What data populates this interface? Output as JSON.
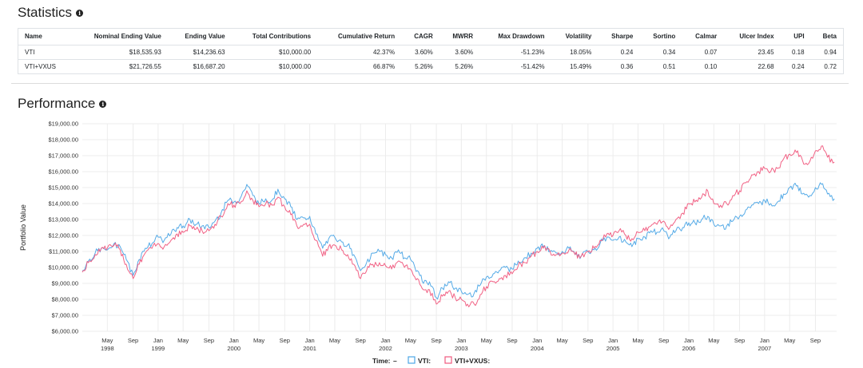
{
  "statistics": {
    "title": "Statistics",
    "info_icon": "info-circle-icon",
    "columns": [
      "Name",
      "Nominal Ending Value",
      "Ending Value",
      "Total Contributions",
      "Cumulative Return",
      "CAGR",
      "MWRR",
      "Max Drawdown",
      "Volatility",
      "Sharpe",
      "Sortino",
      "Calmar",
      "Ulcer Index",
      "UPI",
      "Beta"
    ],
    "rows": [
      [
        "VTI",
        "$18,535.93",
        "$14,236.63",
        "$10,000.00",
        "42.37%",
        "3.60%",
        "3.60%",
        "-51.23%",
        "18.05%",
        "0.24",
        "0.34",
        "0.07",
        "23.45",
        "0.18",
        "0.94"
      ],
      [
        "VTI+VXUS",
        "$21,726.55",
        "$16,687.20",
        "$10,000.00",
        "66.87%",
        "5.26%",
        "5.26%",
        "-51.42%",
        "15.49%",
        "0.36",
        "0.51",
        "0.10",
        "22.68",
        "0.24",
        "0.72"
      ]
    ]
  },
  "performance": {
    "title": "Performance",
    "info_icon": "info-circle-icon"
  },
  "chart_data": {
    "type": "line",
    "ylabel": "Portfolio Value",
    "ylim": [
      6000,
      19000
    ],
    "y_ticks": [
      "$6,000.00",
      "$7,000.00",
      "$8,000.00",
      "$9,000.00",
      "$10,000.00",
      "$11,000.00",
      "$12,000.00",
      "$13,000.00",
      "$14,000.00",
      "$15,000.00",
      "$16,000.00",
      "$17,000.00",
      "$18,000.00",
      "$19,000.00"
    ],
    "x_ticks": [
      {
        "label": "May",
        "year": "1998",
        "t": 1998.33
      },
      {
        "label": "Sep",
        "year": "",
        "t": 1998.67
      },
      {
        "label": "Jan",
        "year": "1999",
        "t": 1999.0
      },
      {
        "label": "May",
        "year": "",
        "t": 1999.33
      },
      {
        "label": "Sep",
        "year": "",
        "t": 1999.67
      },
      {
        "label": "Jan",
        "year": "2000",
        "t": 2000.0
      },
      {
        "label": "May",
        "year": "",
        "t": 2000.33
      },
      {
        "label": "Sep",
        "year": "",
        "t": 2000.67
      },
      {
        "label": "Jan",
        "year": "2001",
        "t": 2001.0
      },
      {
        "label": "May",
        "year": "",
        "t": 2001.33
      },
      {
        "label": "Sep",
        "year": "",
        "t": 2001.67
      },
      {
        "label": "Jan",
        "year": "2002",
        "t": 2002.0
      },
      {
        "label": "May",
        "year": "",
        "t": 2002.33
      },
      {
        "label": "Sep",
        "year": "",
        "t": 2002.67
      },
      {
        "label": "Jan",
        "year": "2003",
        "t": 2003.0
      },
      {
        "label": "May",
        "year": "",
        "t": 2003.33
      },
      {
        "label": "Sep",
        "year": "",
        "t": 2003.67
      },
      {
        "label": "Jan",
        "year": "2004",
        "t": 2004.0
      },
      {
        "label": "May",
        "year": "",
        "t": 2004.33
      },
      {
        "label": "Sep",
        "year": "",
        "t": 2004.67
      },
      {
        "label": "Jan",
        "year": "2005",
        "t": 2005.0
      },
      {
        "label": "May",
        "year": "",
        "t": 2005.33
      },
      {
        "label": "Sep",
        "year": "",
        "t": 2005.67
      },
      {
        "label": "Jan",
        "year": "2006",
        "t": 2006.0
      },
      {
        "label": "May",
        "year": "",
        "t": 2006.33
      },
      {
        "label": "Sep",
        "year": "",
        "t": 2006.67
      },
      {
        "label": "Jan",
        "year": "2007",
        "t": 2007.0
      },
      {
        "label": "May",
        "year": "",
        "t": 2007.33
      },
      {
        "label": "Sep",
        "year": "",
        "t": 2007.67
      }
    ],
    "x_range": [
      1998.0,
      2007.95
    ],
    "legend": {
      "time_label": "Time:",
      "time_marker": "–"
    },
    "series": [
      {
        "name": "VTI:",
        "color": "#4da6e6",
        "points": [
          [
            1998.0,
            9800
          ],
          [
            1998.08,
            10400
          ],
          [
            1998.17,
            10900
          ],
          [
            1998.25,
            11200
          ],
          [
            1998.33,
            11100
          ],
          [
            1998.42,
            11500
          ],
          [
            1998.5,
            11300
          ],
          [
            1998.58,
            10500
          ],
          [
            1998.67,
            9500
          ],
          [
            1998.75,
            10500
          ],
          [
            1998.83,
            11200
          ],
          [
            1998.92,
            11500
          ],
          [
            1999.0,
            11900
          ],
          [
            1999.08,
            11700
          ],
          [
            1999.17,
            12100
          ],
          [
            1999.25,
            12500
          ],
          [
            1999.33,
            12600
          ],
          [
            1999.42,
            13000
          ],
          [
            1999.5,
            12700
          ],
          [
            1999.58,
            12600
          ],
          [
            1999.67,
            12500
          ],
          [
            1999.75,
            12900
          ],
          [
            1999.83,
            13400
          ],
          [
            1999.92,
            14200
          ],
          [
            2000.0,
            14100
          ],
          [
            2000.08,
            14300
          ],
          [
            2000.17,
            15200
          ],
          [
            2000.25,
            14500
          ],
          [
            2000.33,
            14000
          ],
          [
            2000.42,
            14300
          ],
          [
            2000.5,
            14200
          ],
          [
            2000.58,
            14900
          ],
          [
            2000.67,
            14300
          ],
          [
            2000.75,
            13800
          ],
          [
            2000.83,
            13000
          ],
          [
            2000.92,
            13100
          ],
          [
            2001.0,
            13200
          ],
          [
            2001.08,
            12100
          ],
          [
            2001.17,
            11200
          ],
          [
            2001.25,
            11800
          ],
          [
            2001.33,
            11900
          ],
          [
            2001.42,
            11600
          ],
          [
            2001.5,
            11400
          ],
          [
            2001.58,
            10800
          ],
          [
            2001.67,
            9800
          ],
          [
            2001.75,
            10300
          ],
          [
            2001.83,
            10900
          ],
          [
            2001.92,
            11000
          ],
          [
            2002.0,
            10800
          ],
          [
            2002.08,
            10600
          ],
          [
            2002.17,
            11100
          ],
          [
            2002.25,
            10600
          ],
          [
            2002.33,
            10500
          ],
          [
            2002.42,
            9800
          ],
          [
            2002.5,
            9000
          ],
          [
            2002.58,
            9100
          ],
          [
            2002.67,
            8100
          ],
          [
            2002.75,
            8700
          ],
          [
            2002.83,
            9100
          ],
          [
            2002.92,
            8700
          ],
          [
            2003.0,
            8500
          ],
          [
            2003.08,
            8300
          ],
          [
            2003.17,
            8400
          ],
          [
            2003.25,
            8900
          ],
          [
            2003.33,
            9400
          ],
          [
            2003.42,
            9600
          ],
          [
            2003.5,
            9800
          ],
          [
            2003.58,
            10000
          ],
          [
            2003.67,
            9900
          ],
          [
            2003.75,
            10400
          ],
          [
            2003.83,
            10600
          ],
          [
            2003.92,
            10900
          ],
          [
            2004.0,
            11200
          ],
          [
            2004.08,
            11300
          ],
          [
            2004.17,
            11000
          ],
          [
            2004.25,
            10900
          ],
          [
            2004.33,
            11000
          ],
          [
            2004.42,
            11200
          ],
          [
            2004.5,
            10800
          ],
          [
            2004.58,
            10700
          ],
          [
            2004.67,
            11000
          ],
          [
            2004.75,
            11100
          ],
          [
            2004.83,
            11500
          ],
          [
            2004.92,
            11900
          ],
          [
            2005.0,
            11700
          ],
          [
            2005.08,
            11900
          ],
          [
            2005.17,
            11600
          ],
          [
            2005.25,
            11300
          ],
          [
            2005.33,
            11800
          ],
          [
            2005.42,
            11900
          ],
          [
            2005.5,
            12300
          ],
          [
            2005.58,
            12200
          ],
          [
            2005.67,
            12300
          ],
          [
            2005.75,
            11900
          ],
          [
            2005.83,
            12300
          ],
          [
            2005.92,
            12500
          ],
          [
            2006.0,
            12800
          ],
          [
            2006.08,
            12800
          ],
          [
            2006.17,
            13000
          ],
          [
            2006.25,
            13200
          ],
          [
            2006.33,
            12700
          ],
          [
            2006.42,
            12600
          ],
          [
            2006.5,
            12600
          ],
          [
            2006.58,
            12900
          ],
          [
            2006.67,
            13200
          ],
          [
            2006.75,
            13600
          ],
          [
            2006.83,
            13900
          ],
          [
            2006.92,
            14000
          ],
          [
            2007.0,
            14200
          ],
          [
            2007.08,
            14000
          ],
          [
            2007.17,
            14100
          ],
          [
            2007.25,
            14600
          ],
          [
            2007.33,
            15000
          ],
          [
            2007.42,
            15100
          ],
          [
            2007.5,
            14600
          ],
          [
            2007.58,
            14400
          ],
          [
            2007.67,
            15000
          ],
          [
            2007.75,
            15200
          ],
          [
            2007.83,
            14600
          ],
          [
            2007.92,
            14300
          ]
        ]
      },
      {
        "name": "VTI+VXUS:",
        "color": "#f05a7e",
        "points": [
          [
            1998.0,
            9700
          ],
          [
            1998.08,
            10300
          ],
          [
            1998.17,
            10800
          ],
          [
            1998.25,
            11200
          ],
          [
            1998.33,
            11200
          ],
          [
            1998.42,
            11400
          ],
          [
            1998.5,
            11100
          ],
          [
            1998.58,
            10200
          ],
          [
            1998.67,
            9300
          ],
          [
            1998.75,
            10200
          ],
          [
            1998.83,
            10900
          ],
          [
            1998.92,
            11200
          ],
          [
            1999.0,
            11500
          ],
          [
            1999.08,
            11300
          ],
          [
            1999.17,
            11700
          ],
          [
            1999.25,
            12100
          ],
          [
            1999.33,
            12200
          ],
          [
            1999.42,
            12600
          ],
          [
            1999.5,
            12400
          ],
          [
            1999.58,
            12300
          ],
          [
            1999.67,
            12300
          ],
          [
            1999.75,
            12700
          ],
          [
            1999.83,
            13200
          ],
          [
            1999.92,
            14000
          ],
          [
            2000.0,
            13900
          ],
          [
            2000.08,
            14000
          ],
          [
            2000.17,
            14800
          ],
          [
            2000.25,
            14200
          ],
          [
            2000.33,
            13800
          ],
          [
            2000.42,
            14000
          ],
          [
            2000.5,
            13900
          ],
          [
            2000.58,
            14400
          ],
          [
            2000.67,
            13800
          ],
          [
            2000.75,
            13300
          ],
          [
            2000.83,
            12600
          ],
          [
            2000.92,
            12700
          ],
          [
            2001.0,
            12700
          ],
          [
            2001.08,
            11700
          ],
          [
            2001.17,
            10700
          ],
          [
            2001.25,
            11300
          ],
          [
            2001.33,
            11400
          ],
          [
            2001.42,
            11100
          ],
          [
            2001.5,
            10800
          ],
          [
            2001.58,
            10200
          ],
          [
            2001.67,
            9300
          ],
          [
            2001.75,
            9800
          ],
          [
            2001.83,
            10200
          ],
          [
            2001.92,
            10300
          ],
          [
            2002.0,
            10100
          ],
          [
            2002.08,
            9900
          ],
          [
            2002.17,
            10400
          ],
          [
            2002.25,
            10000
          ],
          [
            2002.33,
            9900
          ],
          [
            2002.42,
            9300
          ],
          [
            2002.5,
            8600
          ],
          [
            2002.58,
            8600
          ],
          [
            2002.67,
            7700
          ],
          [
            2002.75,
            8200
          ],
          [
            2002.83,
            8500
          ],
          [
            2002.92,
            8100
          ],
          [
            2003.0,
            8000
          ],
          [
            2003.08,
            7700
          ],
          [
            2003.17,
            7700
          ],
          [
            2003.25,
            8300
          ],
          [
            2003.33,
            8800
          ],
          [
            2003.42,
            9100
          ],
          [
            2003.5,
            9300
          ],
          [
            2003.58,
            9500
          ],
          [
            2003.67,
            9600
          ],
          [
            2003.75,
            10100
          ],
          [
            2003.83,
            10300
          ],
          [
            2003.92,
            10700
          ],
          [
            2004.0,
            11000
          ],
          [
            2004.08,
            11200
          ],
          [
            2004.17,
            11000
          ],
          [
            2004.25,
            10800
          ],
          [
            2004.33,
            10900
          ],
          [
            2004.42,
            11100
          ],
          [
            2004.5,
            10800
          ],
          [
            2004.58,
            10700
          ],
          [
            2004.67,
            11000
          ],
          [
            2004.75,
            11200
          ],
          [
            2004.83,
            11700
          ],
          [
            2004.92,
            12100
          ],
          [
            2005.0,
            12000
          ],
          [
            2005.08,
            12300
          ],
          [
            2005.17,
            12000
          ],
          [
            2005.25,
            11800
          ],
          [
            2005.33,
            12200
          ],
          [
            2005.42,
            12300
          ],
          [
            2005.5,
            12600
          ],
          [
            2005.58,
            12700
          ],
          [
            2005.67,
            12900
          ],
          [
            2005.75,
            12500
          ],
          [
            2005.83,
            13000
          ],
          [
            2005.92,
            13400
          ],
          [
            2006.0,
            14000
          ],
          [
            2006.08,
            14100
          ],
          [
            2006.17,
            14400
          ],
          [
            2006.25,
            14800
          ],
          [
            2006.33,
            14000
          ],
          [
            2006.42,
            13900
          ],
          [
            2006.5,
            14000
          ],
          [
            2006.58,
            14500
          ],
          [
            2006.67,
            14800
          ],
          [
            2006.75,
            15300
          ],
          [
            2006.83,
            15800
          ],
          [
            2006.92,
            16000
          ],
          [
            2007.0,
            16200
          ],
          [
            2007.08,
            16000
          ],
          [
            2007.17,
            16200
          ],
          [
            2007.25,
            16800
          ],
          [
            2007.33,
            17100
          ],
          [
            2007.42,
            17200
          ],
          [
            2007.5,
            16700
          ],
          [
            2007.58,
            16500
          ],
          [
            2007.67,
            17300
          ],
          [
            2007.75,
            17600
          ],
          [
            2007.83,
            16900
          ],
          [
            2007.92,
            16600
          ]
        ]
      }
    ]
  }
}
